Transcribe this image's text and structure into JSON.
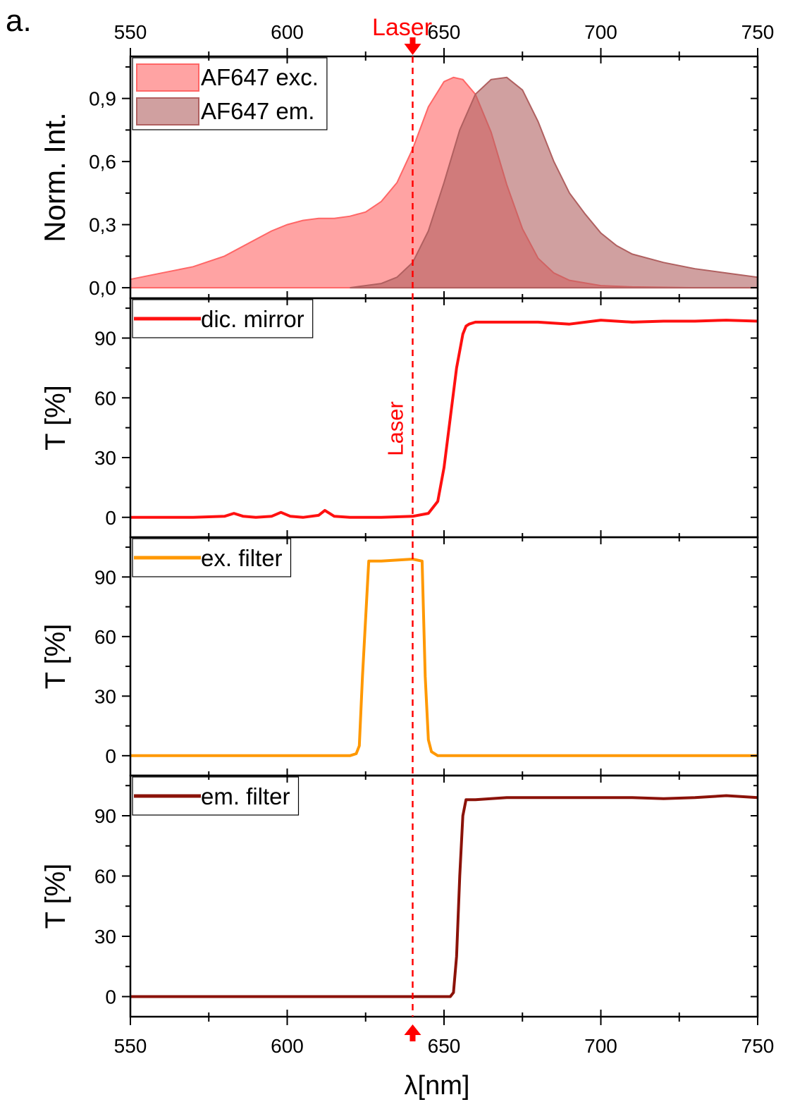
{
  "panel_label": "a.",
  "xaxis": {
    "label": "λ[nm]",
    "range": [
      550,
      750
    ],
    "ticks": [
      "550",
      "600",
      "650",
      "700",
      "750"
    ]
  },
  "laser": {
    "label_top": "Laser",
    "label_panel": "Laser",
    "wavelength": 640,
    "color": "#ff0000"
  },
  "colors": {
    "excitation_fill": "#ff6666",
    "emission_fill": "#b06060",
    "dichroic": "#ff1010",
    "ex_filter": "#ff9800",
    "em_filter": "#8b1208"
  },
  "chart_data": [
    {
      "type": "area",
      "ylabel": "Norm. Int.",
      "ylim": [
        -0.05,
        1.1
      ],
      "yticks": [
        "0,0",
        "0,3",
        "0,6",
        "0,9"
      ],
      "legend_position": "top-left",
      "series": [
        {
          "name": "AF647 exc.",
          "x": [
            550,
            560,
            570,
            580,
            590,
            595,
            600,
            605,
            610,
            615,
            620,
            625,
            630,
            635,
            640,
            645,
            650,
            653,
            656,
            660,
            665,
            670,
            675,
            680,
            685,
            690,
            700,
            710,
            720,
            730,
            740,
            750
          ],
          "y": [
            0.04,
            0.07,
            0.1,
            0.15,
            0.23,
            0.27,
            0.3,
            0.32,
            0.33,
            0.33,
            0.34,
            0.36,
            0.41,
            0.5,
            0.66,
            0.86,
            0.98,
            1.0,
            0.99,
            0.92,
            0.74,
            0.49,
            0.28,
            0.14,
            0.07,
            0.035,
            0.01,
            0.004,
            0.002,
            0.0,
            0.0,
            0.0
          ]
        },
        {
          "name": "AF647 em.",
          "x": [
            620,
            630,
            635,
            640,
            645,
            650,
            655,
            660,
            665,
            670,
            675,
            680,
            685,
            690,
            695,
            700,
            705,
            710,
            720,
            730,
            740,
            750
          ],
          "y": [
            0.0,
            0.02,
            0.05,
            0.12,
            0.27,
            0.5,
            0.75,
            0.92,
            0.99,
            1.0,
            0.94,
            0.79,
            0.6,
            0.45,
            0.35,
            0.26,
            0.2,
            0.16,
            0.12,
            0.09,
            0.07,
            0.05
          ]
        }
      ]
    },
    {
      "type": "line",
      "ylabel": "T [%]",
      "ylim": [
        -10,
        110
      ],
      "yticks": [
        "0",
        "30",
        "60",
        "90"
      ],
      "legend_position": "top-left",
      "series": [
        {
          "name": "dic. mirror",
          "x": [
            550,
            570,
            580,
            583,
            586,
            590,
            595,
            598,
            601,
            605,
            610,
            612,
            615,
            620,
            630,
            640,
            645,
            648,
            650,
            652,
            654,
            656,
            657,
            658,
            660,
            670,
            680,
            690,
            700,
            710,
            720,
            730,
            740,
            750
          ],
          "y": [
            0,
            0,
            0.5,
            2,
            0.5,
            0,
            0.5,
            2.5,
            0.5,
            0,
            1,
            3.5,
            0.5,
            0,
            0,
            0.5,
            2,
            8,
            25,
            50,
            75,
            92,
            96,
            97,
            98,
            98,
            98,
            97,
            99,
            98,
            98.5,
            98.5,
            99,
            98.5
          ]
        }
      ]
    },
    {
      "type": "line",
      "ylabel": "T [%]",
      "ylim": [
        -10,
        110
      ],
      "yticks": [
        "0",
        "30",
        "60",
        "90"
      ],
      "legend_position": "top-left",
      "series": [
        {
          "name": "ex. filter",
          "x": [
            550,
            620,
            622,
            623,
            624,
            626,
            630,
            635,
            640,
            643,
            644,
            645,
            646,
            648,
            650,
            750
          ],
          "y": [
            0,
            0,
            1,
            5,
            40,
            98,
            98,
            98.5,
            99,
            98,
            40,
            8,
            2,
            0,
            0,
            0
          ]
        }
      ]
    },
    {
      "type": "line",
      "ylabel": "T [%]",
      "ylim": [
        -10,
        110
      ],
      "yticks": [
        "0",
        "30",
        "60",
        "90"
      ],
      "legend_position": "top-left",
      "series": [
        {
          "name": "em. filter",
          "x": [
            550,
            652,
            653,
            654,
            655,
            656,
            657,
            660,
            670,
            680,
            690,
            700,
            710,
            720,
            730,
            740,
            750
          ],
          "y": [
            0,
            0,
            2,
            20,
            60,
            90,
            98,
            98,
            99,
            99,
            99,
            99,
            99,
            98.5,
            99,
            100,
            99
          ]
        }
      ]
    }
  ]
}
